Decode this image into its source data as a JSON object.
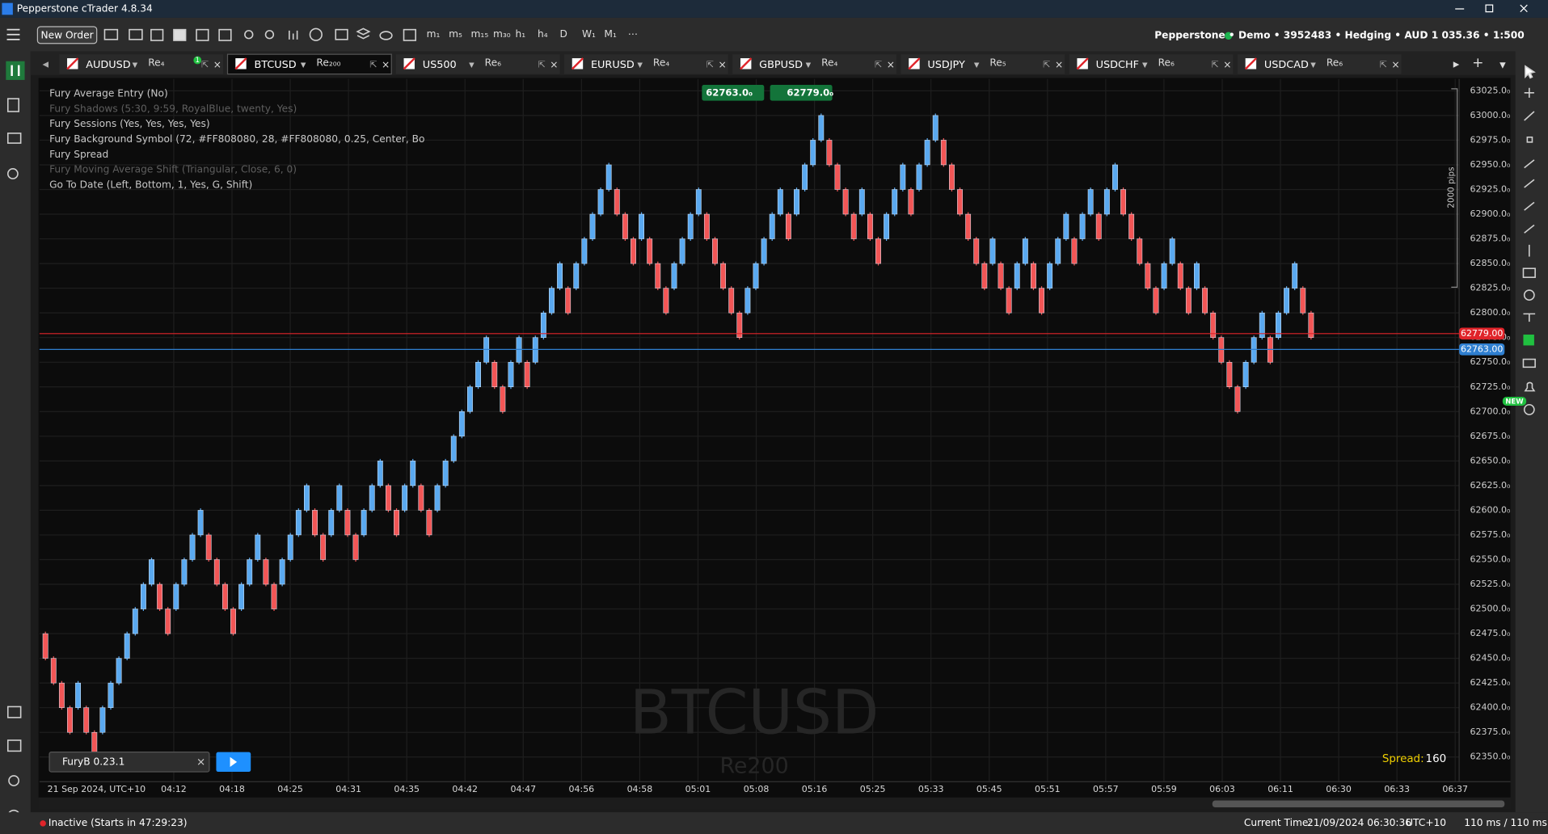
{
  "window": {
    "title": "Pepperstone cTrader 4.8.34"
  },
  "toolbar": {
    "new_order": "New Order",
    "timeframes": [
      "m₁",
      "m₅",
      "m₁₅",
      "m₃₀",
      "h₁",
      "h₄",
      "D",
      "W₁",
      "M₁"
    ],
    "account": "Pepperstone • Demo • 3952483 • Hedging • AUD 1 035.36 • 1:500"
  },
  "tabs": [
    {
      "symbol": "AUDUSD",
      "timeframe": "Re₄",
      "badge": "1"
    },
    {
      "symbol": "BTCUSD",
      "timeframe": "Re₂₀₀",
      "active": true
    },
    {
      "symbol": "US500",
      "timeframe": "Re₆"
    },
    {
      "symbol": "EURUSD",
      "timeframe": "Re₄"
    },
    {
      "symbol": "GBPUSD",
      "timeframe": "Re₄"
    },
    {
      "symbol": "USDJPY",
      "timeframe": "Re₅"
    },
    {
      "symbol": "USDCHF",
      "timeframe": "Re₆"
    },
    {
      "symbol": "USDCAD",
      "timeframe": "Re₆"
    }
  ],
  "chart_data": {
    "type": "renko",
    "watermark": "BTCUSD",
    "watermark_sub": "Re200",
    "indicators": [
      {
        "text": "Fury Average Entry (No)",
        "enabled": true
      },
      {
        "text": "Fury Shadows (5:30, 9:59, RoyalBlue, twenty, Yes)",
        "enabled": false
      },
      {
        "text": "Fury Sessions (Yes, Yes, Yes, Yes)",
        "enabled": true
      },
      {
        "text": "Fury Background Symbol (72, #FF808080, 28, #FF808080, 0.25, Center, Bo",
        "enabled": true
      },
      {
        "text": "Fury Spread",
        "enabled": true
      },
      {
        "text": "Fury Moving Average Shift (Triangular, Close, 6, 0)",
        "enabled": false
      },
      {
        "text": "Go To Date (Left, Bottom, 1, Yes, G, Shift)",
        "enabled": true
      }
    ],
    "sell_button": "62763.0₀",
    "buy_button": "62779.0₀",
    "ask_line": {
      "value": 62779,
      "label": "62779.00",
      "color": "#e0242a"
    },
    "bid_line": {
      "value": 62763,
      "label": "62763.00",
      "color": "#2f7fd0"
    },
    "up_color": "#5aa9f0",
    "down_color": "#f25656",
    "open": [
      62475,
      62450,
      62425,
      62400,
      62400,
      62400,
      62375,
      62375,
      62400,
      62425,
      62450,
      62475,
      62500,
      62525,
      62525,
      62500,
      62500,
      62525,
      62550,
      62575,
      62575,
      62550,
      62525,
      62500,
      62500,
      62525,
      62550,
      62550,
      62525,
      62525,
      62550,
      62575,
      62600,
      62600,
      62575,
      62575,
      62600,
      62600,
      62575,
      62575,
      62600,
      62625,
      62625,
      62600,
      62600,
      62625,
      62625,
      62600,
      62600,
      62625,
      62650,
      62675,
      62700,
      62725,
      62750,
      62750,
      62725,
      62725,
      62750,
      62750,
      62750,
      62775,
      62800,
      62825,
      62825,
      62825,
      62850,
      62875,
      62900,
      62925,
      62925,
      62900,
      62875,
      62875,
      62875,
      62850,
      62825,
      62825,
      62850,
      62875,
      62900,
      62900,
      62875,
      62850,
      62825,
      62800,
      62800,
      62825,
      62850,
      62875,
      62900,
      62900,
      62900,
      62925,
      62950,
      62975,
      62975,
      62950,
      62925,
      62900,
      62900,
      62900,
      62875,
      62875,
      62900,
      62925,
      62925,
      62925,
      62950,
      62975,
      62975,
      62950,
      62925,
      62900,
      62875,
      62850,
      62850,
      62850,
      62825,
      62825,
      62850,
      62850,
      62825,
      62825,
      62850,
      62875,
      62875,
      62875,
      62900,
      62900,
      62900,
      62925,
      62925,
      62900,
      62875,
      62850,
      62825,
      62825,
      62850,
      62850,
      62825,
      62825,
      62825,
      62800,
      62775,
      62750,
      62725,
      62725,
      62750,
      62775,
      62775,
      62775,
      62800,
      62825,
      62825,
      62800
    ],
    "close": [
      62450,
      62425,
      62400,
      62375,
      62425,
      62375,
      62350,
      62400,
      62425,
      62450,
      62475,
      62500,
      62525,
      62550,
      62500,
      62475,
      62525,
      62550,
      62575,
      62600,
      62550,
      62525,
      62500,
      62475,
      62525,
      62550,
      62575,
      62525,
      62500,
      62550,
      62575,
      62600,
      62625,
      62575,
      62550,
      62600,
      62625,
      62575,
      62550,
      62600,
      62625,
      62650,
      62600,
      62575,
      62625,
      62650,
      62600,
      62575,
      62625,
      62650,
      62675,
      62700,
      62725,
      62750,
      62775,
      62725,
      62700,
      62750,
      62775,
      62725,
      62775,
      62800,
      62825,
      62850,
      62800,
      62850,
      62875,
      62900,
      62925,
      62950,
      62900,
      62875,
      62850,
      62900,
      62850,
      62825,
      62800,
      62850,
      62875,
      62900,
      62925,
      62875,
      62850,
      62825,
      62800,
      62775,
      62825,
      62850,
      62875,
      62900,
      62925,
      62875,
      62925,
      62950,
      62975,
      63000,
      62950,
      62925,
      62900,
      62875,
      62925,
      62875,
      62850,
      62900,
      62925,
      62950,
      62900,
      62950,
      62975,
      63000,
      62950,
      62925,
      62900,
      62875,
      62850,
      62825,
      62875,
      62825,
      62800,
      62850,
      62875,
      62825,
      62800,
      62850,
      62875,
      62900,
      62850,
      62900,
      62925,
      62875,
      62925,
      62950,
      62900,
      62875,
      62850,
      62825,
      62800,
      62850,
      62875,
      62825,
      62800,
      62850,
      62800,
      62775,
      62750,
      62725,
      62700,
      62750,
      62775,
      62800,
      62750,
      62800,
      62825,
      62850,
      62800,
      62775
    ],
    "ylim": [
      62325,
      63037
    ],
    "yticks": [
      {
        "value": 62350,
        "label": "62350.0₀"
      },
      {
        "value": 62375,
        "label": "62375.0₀"
      },
      {
        "value": 62400,
        "label": "62400.0₀"
      },
      {
        "value": 62425,
        "label": "62425.0₀"
      },
      {
        "value": 62450,
        "label": "62450.0₀"
      },
      {
        "value": 62475,
        "label": "62475.0₀"
      },
      {
        "value": 62500,
        "label": "62500.0₀"
      },
      {
        "value": 62525,
        "label": "62525.0₀"
      },
      {
        "value": 62550,
        "label": "62550.0₀"
      },
      {
        "value": 62575,
        "label": "62575.0₀"
      },
      {
        "value": 62600,
        "label": "62600.0₀"
      },
      {
        "value": 62625,
        "label": "62625.0₀"
      },
      {
        "value": 62650,
        "label": "62650.0₀"
      },
      {
        "value": 62675,
        "label": "62675.0₀"
      },
      {
        "value": 62700,
        "label": "62700.0₀"
      },
      {
        "value": 62725,
        "label": "62725.0₀"
      },
      {
        "value": 62750,
        "label": "62750.0₀"
      },
      {
        "value": 62775,
        "label": "62775.0₀"
      },
      {
        "value": 62800,
        "label": "62800.0₀"
      },
      {
        "value": 62825,
        "label": "62825.0₀"
      },
      {
        "value": 62850,
        "label": "62850.0₀"
      },
      {
        "value": 62875,
        "label": "62875.0₀"
      },
      {
        "value": 62900,
        "label": "62900.0₀"
      },
      {
        "value": 62925,
        "label": "62925.0₀"
      },
      {
        "value": 62950,
        "label": "62950.0₀"
      },
      {
        "value": 62975,
        "label": "62975.0₀"
      },
      {
        "value": 63000,
        "label": "63000.0₀"
      },
      {
        "value": 63025,
        "label": "63025.0₀"
      }
    ],
    "grid": true,
    "x_start_label": "21 Sep 2024, UTC+10",
    "x_labels": [
      "04:12",
      "04:18",
      "04:25",
      "04:31",
      "04:35",
      "04:42",
      "04:47",
      "04:56",
      "04:58",
      "05:01",
      "05:08",
      "05:16",
      "05:25",
      "05:33",
      "05:45",
      "05:51",
      "05:57",
      "05:59",
      "06:03",
      "06:11",
      "06:30",
      "06:33",
      "06:37"
    ],
    "ruler_label": "2000 pips",
    "spread_label": "Spread:",
    "spread": 160,
    "bot": "FuryB 0.23.1"
  },
  "status_bar": {
    "state": "Inactive (Starts in 47:29:23)",
    "current_time_label": "Current Time:",
    "current_time": "21/09/2024 06:30:36",
    "timezone": "UTC+10",
    "latency": "110 ms / 110 ms"
  },
  "right_toolbar": {
    "badge": "NEW"
  }
}
